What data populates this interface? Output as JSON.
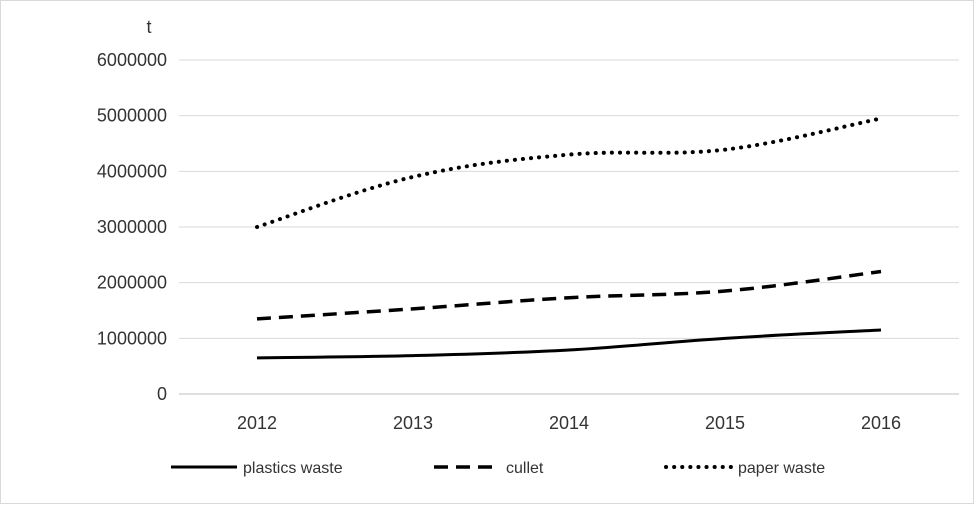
{
  "chart_data": {
    "type": "line",
    "title": "",
    "xlabel": "",
    "ylabel": "t",
    "categories": [
      "2012",
      "2013",
      "2014",
      "2015",
      "2016"
    ],
    "ylim": [
      0,
      6000000
    ],
    "yticks": [
      "0",
      "1000000",
      "2000000",
      "3000000",
      "4000000",
      "5000000",
      "6000000"
    ],
    "grid": true,
    "legend_position": "bottom",
    "series": [
      {
        "name": "plastics waste",
        "style": "solid",
        "color": "#000000",
        "values": [
          650000,
          690000,
          790000,
          1000000,
          1150000
        ]
      },
      {
        "name": "cullet",
        "style": "dashed",
        "color": "#000000",
        "values": [
          1350000,
          1530000,
          1730000,
          1850000,
          2200000
        ]
      },
      {
        "name": "paper waste",
        "style": "dotted",
        "color": "#000000",
        "values": [
          3000000,
          3900000,
          4300000,
          4390000,
          4950000
        ]
      }
    ]
  }
}
